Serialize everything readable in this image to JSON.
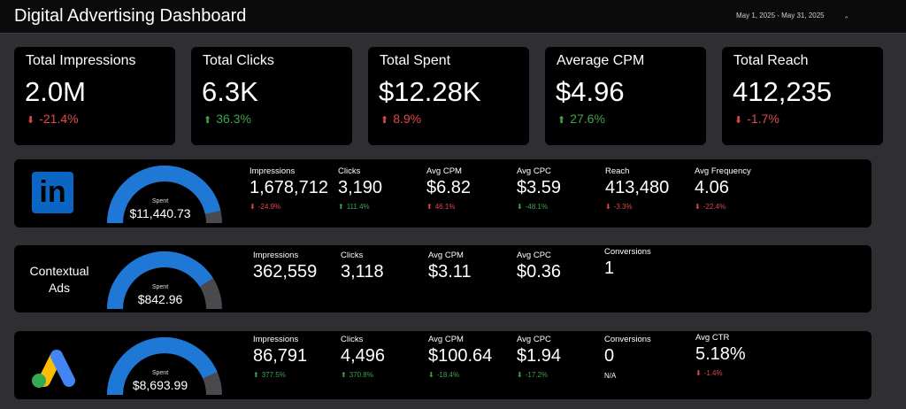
{
  "header": {
    "title": "Digital Advertising Dashboard",
    "date_range": "May 1, 2025 - May 31, 2025",
    "date_caret": "‸"
  },
  "kpis": [
    {
      "label": "Total Impressions",
      "value": "2.0M",
      "delta": "-21.4%",
      "trend": "down"
    },
    {
      "label": "Total Clicks",
      "value": "6.3K",
      "delta": "36.3%",
      "trend": "up"
    },
    {
      "label": "Total Spent",
      "value": "$12.28K",
      "delta": "8.9%",
      "trend": "up"
    },
    {
      "label": "Average CPM",
      "value": "$4.96",
      "delta": "27.6%",
      "trend": "up"
    },
    {
      "label": "Total Reach",
      "value": "412,235",
      "delta": "-1.7%",
      "trend": "down"
    }
  ],
  "arrows": {
    "up": "⬆",
    "down": "⬇"
  },
  "linkedin": {
    "logo_text": "in",
    "spent_label": "Spent",
    "spent_value": "$11,440.73",
    "spent_fraction": 0.93,
    "metrics": [
      {
        "label": "Impressions",
        "value": "1,678,712",
        "delta": "-24.9%"
      },
      {
        "label": "Clicks",
        "value": "3,190",
        "delta": "111.4%"
      },
      {
        "label": "Avg CPM",
        "value": "$6.82",
        "delta": "46.1%"
      },
      {
        "label": "Avg CPC",
        "value": "$3.59",
        "delta": "-48.1%"
      },
      {
        "label": "Reach",
        "value": "413,480",
        "delta": "-3.3%"
      },
      {
        "label": "Avg Frequency",
        "value": "4.06",
        "delta": "-22.4%"
      }
    ]
  },
  "contextual": {
    "title_line1": "Contextual",
    "title_line2": "Ads",
    "spent_label": "Spent",
    "spent_value": "$842.96",
    "spent_fraction": 0.82,
    "metrics": [
      {
        "label": "Impressions",
        "value": "362,559"
      },
      {
        "label": "Clicks",
        "value": "3,118"
      },
      {
        "label": "Avg CPM",
        "value": "$3.11"
      },
      {
        "label": "Avg CPC",
        "value": "$0.36"
      },
      {
        "label": "Conversions",
        "value": "1"
      }
    ]
  },
  "google": {
    "spent_label": "Spent",
    "spent_value": "$8,693.99",
    "spent_fraction": 0.87,
    "metrics": [
      {
        "label": "Impressions",
        "value": "86,791",
        "delta": "377.5%"
      },
      {
        "label": "Clicks",
        "value": "4,496",
        "delta": "370.8%"
      },
      {
        "label": "Avg CPM",
        "value": "$100.64",
        "delta": "-18.4%"
      },
      {
        "label": "Avg CPC",
        "value": "$1.94",
        "delta": "-17.2%"
      },
      {
        "label": "Conversions",
        "value": "0",
        "sub": "N/A"
      },
      {
        "label": "Avg CTR",
        "value": "5.18%",
        "delta": "-1.4%"
      }
    ]
  },
  "colors": {
    "positive": "#3fa34d",
    "negative": "#e04848",
    "gauge_fill": "#1f78d6",
    "gauge_track": "#4a4a4e",
    "linkedin_blue": "#0a66c2"
  }
}
